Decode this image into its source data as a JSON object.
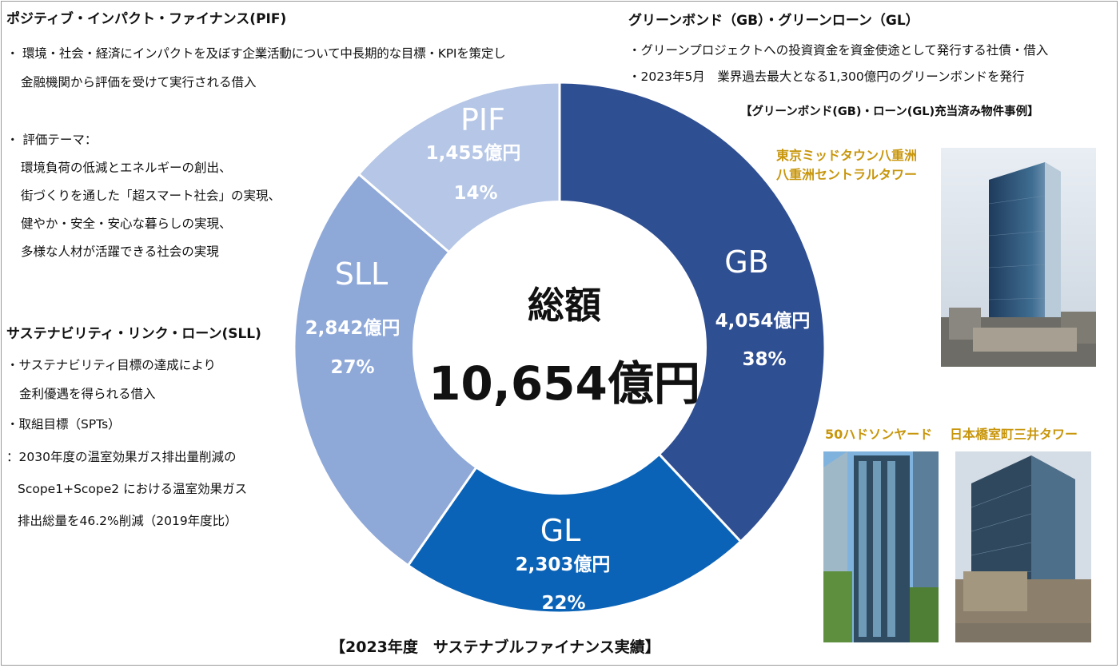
{
  "left": {
    "pif_heading": "ポジティブ・インパクト・ファイナンス(PIF)",
    "pif_desc1": "・ 環境・社会・経済にインパクトを及ぼす企業活動について中長期的な目標・KPIを策定し",
    "pif_desc2": "金融機関から評価を受けて実行される借入",
    "theme_label": "・ 評価テーマ：",
    "themes": [
      "環境負荷の低減とエネルギーの創出、",
      "街づくりを通した「超スマート社会」の実現、",
      "健やか・安全・安心な暮らしの実現、",
      "多様な人材が活躍できる社会の実現"
    ],
    "sll_heading": "サステナビリティ・リンク・ローン(SLL)",
    "sll_desc1": "・サステナビリティ目標の達成により",
    "sll_desc2": "金利優遇を得られる借入",
    "spt_label": "・取組目標（SPTs）",
    "spt_lines": [
      "：2030年度の温室効果ガス排出量削減の",
      "Scope1+Scope2 における温室効果ガス",
      "排出総量を46.2%削減（2019年度比）"
    ]
  },
  "right": {
    "heading": "グリーンボンド（GB）・グリーンローン（GL）",
    "desc1": "・グリーンプロジェクトへの投資資金を資金使途として発行する社債・借入",
    "desc2": "・2023年5月　業界過去最大となる1,300億円のグリーンボンドを発行",
    "cases_label": "【グリーンボンド(GB)・ローン(GL)充当済み物件事例】",
    "building1_line1": "東京ミッドタウン八重洲",
    "building1_line2": "八重洲セントラルタワー",
    "building2": "50ハドソンヤード",
    "building3": "日本橋室町三井タワー"
  },
  "chart_data": {
    "type": "pie",
    "center_label": "総額",
    "total": "10,654億円",
    "caption": "【2023年度　サステナブルファイナンス実績】",
    "slices": [
      {
        "name": "GB",
        "amount": "4,054億円",
        "value": 4054,
        "pct": "38%",
        "color": "#2f4f93"
      },
      {
        "name": "GL",
        "amount": "2,303億円",
        "value": 2303,
        "pct": "22%",
        "color": "#0b63b7"
      },
      {
        "name": "SLL",
        "amount": "2,842億円",
        "value": 2842,
        "pct": "27%",
        "color": "#8ea8d8"
      },
      {
        "name": "PIF",
        "amount": "1,455億円",
        "value": 1455,
        "pct": "14%",
        "color": "#b5c6e6"
      }
    ]
  },
  "colors": {
    "gold": "#c8960c"
  },
  "icons": [
    "building-photo-yaesu",
    "building-photo-hudson-yards",
    "building-photo-muromachi"
  ]
}
